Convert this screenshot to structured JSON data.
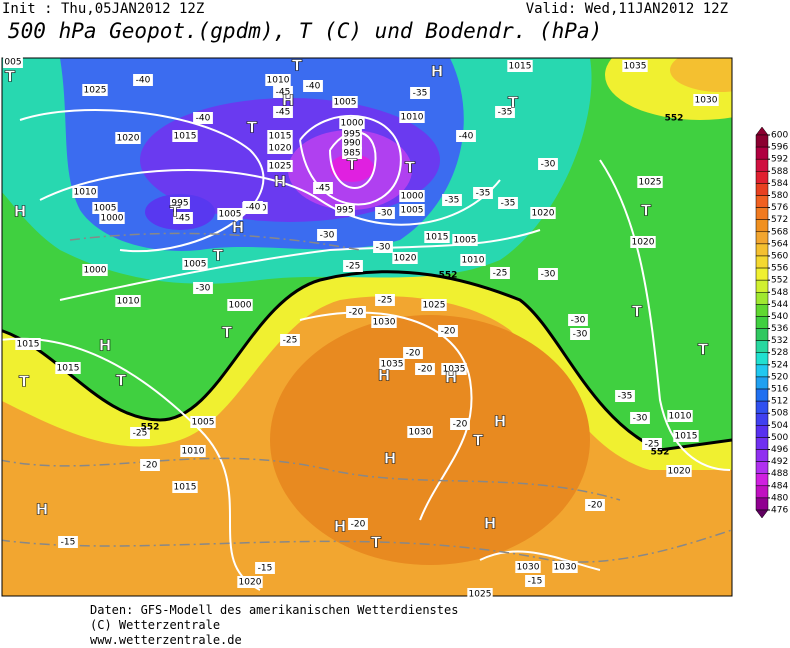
{
  "header": {
    "init": "Init : Thu,05JAN2012 12Z",
    "valid": "Valid: Wed,11JAN2012 12Z",
    "title": "500 hPa Geopot.(gpdm), T (C) und Bodendr. (hPa)"
  },
  "colorbar": {
    "ticks": [
      600,
      596,
      592,
      588,
      584,
      580,
      576,
      572,
      568,
      564,
      560,
      556,
      552,
      548,
      544,
      540,
      536,
      532,
      528,
      524,
      520,
      516,
      512,
      508,
      504,
      500,
      496,
      492,
      488,
      484,
      480,
      476
    ],
    "colors": [
      "#8b0030",
      "#b00040",
      "#d01040",
      "#e02030",
      "#e84020",
      "#f06020",
      "#f07a20",
      "#f09020",
      "#f2a630",
      "#f4c030",
      "#f4d830",
      "#f0f030",
      "#d0f030",
      "#a0e830",
      "#60d830",
      "#40d040",
      "#30c860",
      "#28d8a0",
      "#20e0d0",
      "#20c8f0",
      "#20a0f0",
      "#2070f0",
      "#3050f0",
      "#4040f0",
      "#5830f0",
      "#7030f0",
      "#9030f0",
      "#b030f0",
      "#d020e0",
      "#c010c0",
      "#900090",
      "#600060"
    ]
  },
  "map": {
    "isobars": [
      "1025",
      "1020",
      "1015",
      "1010",
      "1005",
      "1015",
      "1020",
      "1025",
      "1000",
      "995",
      "990",
      "985",
      "1010",
      "1015",
      "1010",
      "1005",
      "1000",
      "995",
      "1005",
      "1010",
      "995",
      "1000",
      "1005",
      "1015",
      "1005",
      "1020",
      "1010",
      "1020",
      "1025",
      "1020",
      "1035",
      "1030",
      "1000",
      "1005",
      "1010",
      "1000",
      "1015",
      "1015",
      "1025",
      "1030",
      "1035",
      "1035",
      "1030",
      "1005",
      "1010",
      "1015",
      "1010",
      "1015",
      "1020",
      "1030",
      "1030",
      "1025",
      "1020",
      "005"
    ],
    "temperatures": [
      "-40",
      "-45",
      "-40",
      "-45",
      "-40",
      "-35",
      "-35",
      "-40",
      "-30",
      "-40",
      "-45",
      "-45",
      "-35",
      "-35",
      "-35",
      "-30",
      "-30",
      "-30",
      "-25",
      "-25",
      "-30",
      "-25",
      "-20",
      "-30",
      "-25",
      "-20",
      "-20",
      "-20",
      "-30",
      "-30",
      "-35",
      "-30",
      "-25",
      "-25",
      "-20",
      "-20",
      "-20",
      "-20",
      "-15",
      "-15",
      "-15"
    ],
    "centers": [
      "T",
      "H",
      "T",
      "H",
      "H",
      "T",
      "T",
      "T",
      "T",
      "H",
      "T",
      "H",
      "T",
      "T",
      "H",
      "T",
      "T",
      "H",
      "H",
      "T",
      "H",
      "H",
      "H",
      "H",
      "T",
      "H",
      "T",
      "T",
      "T"
    ],
    "contours": [
      "552",
      "552",
      "552",
      "552"
    ]
  },
  "footer": [
    "Daten: GFS-Modell des amerikanischen Wetterdienstes",
    "(C) Wetterzentrale",
    "www.wetterzentrale.de"
  ]
}
